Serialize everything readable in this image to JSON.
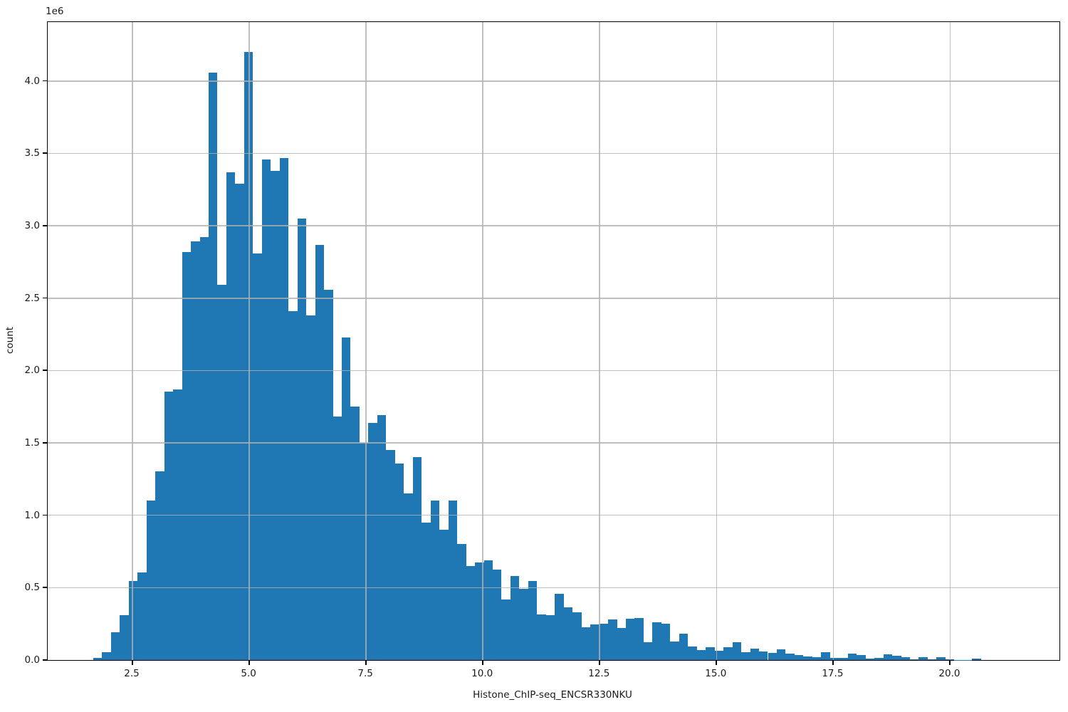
{
  "figure": {
    "xlabel": "Histone_ChIP-seq_ENCSR330NKU",
    "ylabel": "count",
    "offset_label": "1e6"
  },
  "colors": {
    "bar": "#1f77b4",
    "grid": "rgba(176,176,176,0.8)",
    "spine": "#000000",
    "background": "#ffffff"
  },
  "chart_data": {
    "type": "bar",
    "subtype": "histogram",
    "title": "",
    "xlabel": "Histone_ChIP-seq_ENCSR330NKU",
    "ylabel": "count",
    "y_scale_note": "heights are in millions (1e6 counts)",
    "grid": true,
    "legend": false,
    "xlim": [
      0.686,
      22.34
    ],
    "ylim_millions": [
      0,
      4.407
    ],
    "x_ticks": [
      2.5,
      5.0,
      7.5,
      10.0,
      12.5,
      15.0,
      17.5,
      20.0
    ],
    "x_tick_labels": [
      "2.5",
      "5.0",
      "7.5",
      "10.0",
      "12.5",
      "15.0",
      "17.5",
      "20.0"
    ],
    "y_ticks_millions": [
      0.0,
      0.5,
      1.0,
      1.5,
      2.0,
      2.5,
      3.0,
      3.5,
      4.0
    ],
    "y_tick_labels": [
      "0.0",
      "0.5",
      "1.0",
      "1.5",
      "2.0",
      "2.5",
      "3.0",
      "3.5",
      "4.0"
    ],
    "bin_start": 1.66,
    "bin_width": 0.19,
    "heights_millions": [
      0.015,
      0.055,
      0.19,
      0.31,
      0.545,
      0.607,
      1.1,
      1.305,
      1.855,
      1.87,
      2.82,
      2.89,
      2.92,
      4.06,
      2.59,
      3.37,
      3.29,
      4.2,
      2.81,
      3.46,
      3.38,
      3.47,
      2.41,
      3.05,
      2.38,
      2.87,
      2.56,
      1.68,
      2.23,
      1.75,
      1.5,
      1.64,
      1.69,
      1.45,
      1.36,
      1.15,
      1.4,
      0.95,
      1.1,
      0.9,
      1.1,
      0.8,
      0.65,
      0.674,
      0.688,
      0.625,
      0.42,
      0.58,
      0.49,
      0.546,
      0.317,
      0.31,
      0.458,
      0.364,
      0.33,
      0.226,
      0.246,
      0.251,
      0.28,
      0.221,
      0.285,
      0.29,
      0.123,
      0.261,
      0.251,
      0.128,
      0.18,
      0.095,
      0.07,
      0.088,
      0.065,
      0.088,
      0.124,
      0.054,
      0.079,
      0.059,
      0.049,
      0.074,
      0.046,
      0.034,
      0.025,
      0.02,
      0.054,
      0.013,
      0.015,
      0.046,
      0.034,
      0.01,
      0.015,
      0.04,
      0.03,
      0.02,
      0.005,
      0.02,
      0.004,
      0.018,
      0.003,
      0.002,
      0.001,
      0.012
    ]
  }
}
